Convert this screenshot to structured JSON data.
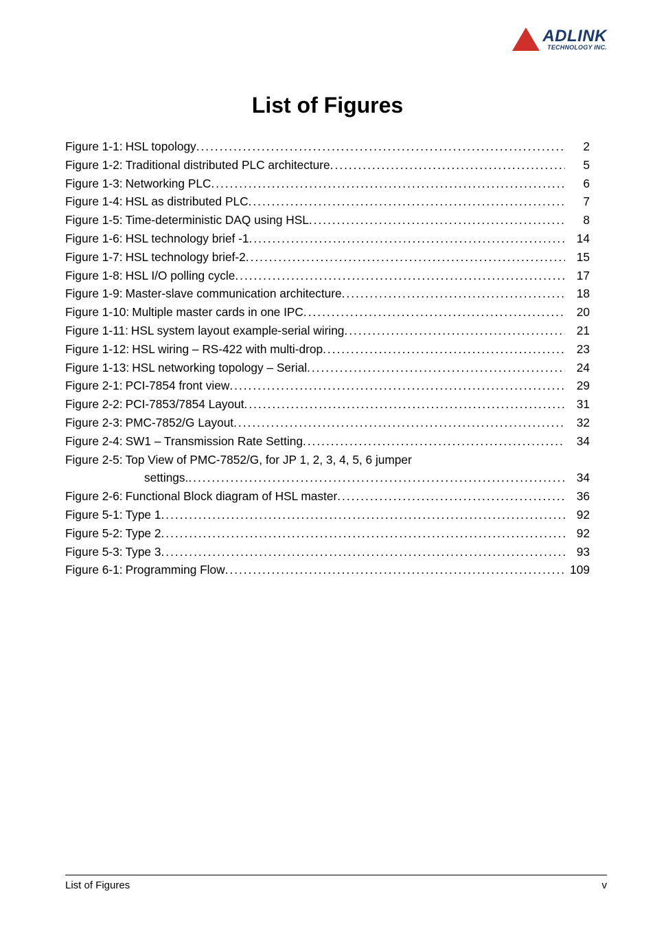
{
  "logo": {
    "main": "ADLINK",
    "sub": "TECHNOLOGY INC."
  },
  "title": "List of Figures",
  "figures": [
    {
      "label": "Figure 1-1:",
      "text": "HSL topology",
      "page": "2"
    },
    {
      "label": "Figure 1-2:",
      "text": "Traditional distributed PLC architecture",
      "page": "5"
    },
    {
      "label": "Figure 1-3:",
      "text": "Networking PLC",
      "page": "6"
    },
    {
      "label": "Figure 1-4:",
      "text": "HSL as distributed PLC",
      "page": "7"
    },
    {
      "label": "Figure 1-5:",
      "text": "Time-deterministic DAQ using HSL",
      "page": "8"
    },
    {
      "label": "Figure 1-6:",
      "text": "HSL technology brief -1",
      "page": "14"
    },
    {
      "label": "Figure 1-7:",
      "text": "HSL technology brief-2",
      "page": "15"
    },
    {
      "label": "Figure 1-8:",
      "text": "HSL I/O polling cycle",
      "page": "17"
    },
    {
      "label": "Figure 1-9:",
      "text": "Master-slave communication architecture",
      "page": "18"
    },
    {
      "label": "Figure 1-10:",
      "text": "Multiple master cards in one IPC",
      "page": "20"
    },
    {
      "label": "Figure 1-11:",
      "text": "HSL system layout example-serial wiring",
      "page": "21"
    },
    {
      "label": "Figure 1-12:",
      "text": "HSL wiring – RS-422 with multi-drop",
      "page": "23"
    },
    {
      "label": "Figure 1-13:",
      "text": "HSL networking topology – Serial",
      "page": "24"
    },
    {
      "label": "Figure 2-1:",
      "text": "PCI-7854 front view",
      "page": "29"
    },
    {
      "label": "Figure 2-2:",
      "text": "PCI-7853/7854 Layout",
      "page": "31"
    },
    {
      "label": "Figure 2-3:",
      "text": "PMC-7852/G Layout",
      "page": "32"
    },
    {
      "label": "Figure 2-4:",
      "text": "SW1 – Transmission Rate Setting",
      "page": "34"
    },
    {
      "label": "Figure 2-5:",
      "text": "Top View of PMC-7852/G, for JP 1, 2, 3, 4, 5, 6 jumper",
      "page": null,
      "cont": "settings.",
      "contPage": "34"
    },
    {
      "label": "Figure 2-6:",
      "text": "Functional Block diagram of HSL master",
      "page": "36"
    },
    {
      "label": "Figure 5-1:",
      "text": "Type 1",
      "page": "92"
    },
    {
      "label": "Figure 5-2:",
      "text": "Type 2",
      "page": "92"
    },
    {
      "label": "Figure 5-3:",
      "text": "Type 3",
      "page": "93"
    },
    {
      "label": "Figure 6-1:",
      "text": "Programming Flow",
      "page": "109"
    }
  ],
  "footer": {
    "left": "List of Figures",
    "right": "v"
  }
}
